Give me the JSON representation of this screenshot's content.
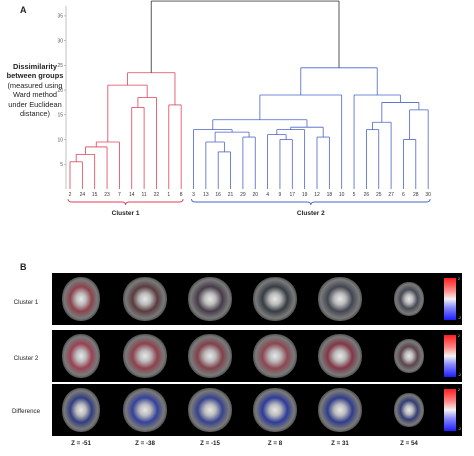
{
  "panel_a": {
    "letter": "A",
    "ylabel_bold": "Dissimilarity between groups",
    "ylabel_normal": "(measured using Ward method under Euclidean distance)",
    "cluster1_label": "Cluster 1",
    "cluster2_label": "Cluster 2",
    "colors": {
      "cluster1": "#e0405a",
      "cluster2": "#4a63c8",
      "root": "#444444"
    }
  },
  "chart_data": {
    "type": "dendrogram",
    "ylim": [
      0,
      37
    ],
    "yticks": [
      "5",
      "10",
      "15",
      "20",
      "25",
      "30",
      "35"
    ],
    "leaves": [
      "2",
      "24",
      "15",
      "23",
      "7",
      "14",
      "11",
      "22",
      "1",
      "8",
      "3",
      "13",
      "16",
      "21",
      "29",
      "20",
      "4",
      "9",
      "17",
      "19",
      "12",
      "18",
      "10",
      "5",
      "26",
      "25",
      "27",
      "6",
      "28",
      "30"
    ],
    "merges": [
      {
        "a": "2",
        "b": "24",
        "height": 5.5
      },
      {
        "a": "m1",
        "b": "15",
        "height": 7
      },
      {
        "a": "m2",
        "b": "23",
        "height": 8.5
      },
      {
        "a": "m3",
        "b": "7",
        "height": 9.5
      },
      {
        "a": "14",
        "b": "11",
        "height": 16.5
      },
      {
        "a": "m5",
        "b": "22",
        "height": 18.5
      },
      {
        "a": "m4",
        "b": "m6",
        "height": 21
      },
      {
        "a": "1",
        "b": "8",
        "height": 17
      },
      {
        "a": "m7",
        "b": "m8",
        "height": 23.5
      },
      {
        "a": "16",
        "b": "21",
        "height": 7.5
      },
      {
        "a": "13",
        "b": "m10",
        "height": 9.5
      },
      {
        "a": "29",
        "b": "20",
        "height": 10.5
      },
      {
        "a": "m11",
        "b": "m12",
        "height": 11.5
      },
      {
        "a": "3",
        "b": "m13",
        "height": 12
      },
      {
        "a": "9",
        "b": "17",
        "height": 10
      },
      {
        "a": "4",
        "b": "m15",
        "height": 11
      },
      {
        "a": "m16",
        "b": "19",
        "height": 12
      },
      {
        "a": "12",
        "b": "18",
        "height": 10.5
      },
      {
        "a": "m17",
        "b": "m18",
        "height": 12.5
      },
      {
        "a": "m14",
        "b": "m19",
        "height": 14
      },
      {
        "a": "m20",
        "b": "10",
        "height": 19
      },
      {
        "a": "26",
        "b": "25",
        "height": 12
      },
      {
        "a": "m22",
        "b": "27",
        "height": 13.5
      },
      {
        "a": "6",
        "b": "28",
        "height": 10
      },
      {
        "a": "m24",
        "b": "30",
        "height": 16
      },
      {
        "a": "m23",
        "b": "m25",
        "height": 17.5
      },
      {
        "a": "5",
        "b": "m26",
        "height": 19
      },
      {
        "a": "m21",
        "b": "m27",
        "height": 24.5
      },
      {
        "a": "m9",
        "b": "m28",
        "height": 38
      }
    ]
  },
  "panel_b": {
    "letter": "B",
    "rows": [
      "Cluster 1",
      "Cluster 2",
      "Difference"
    ],
    "z_labels": [
      "Z = -51",
      "Z = -38",
      "Z = -15",
      "Z = 8",
      "Z = 31",
      "Z = 54"
    ],
    "colorbar_max": "2",
    "colorbar_min": "-2"
  }
}
